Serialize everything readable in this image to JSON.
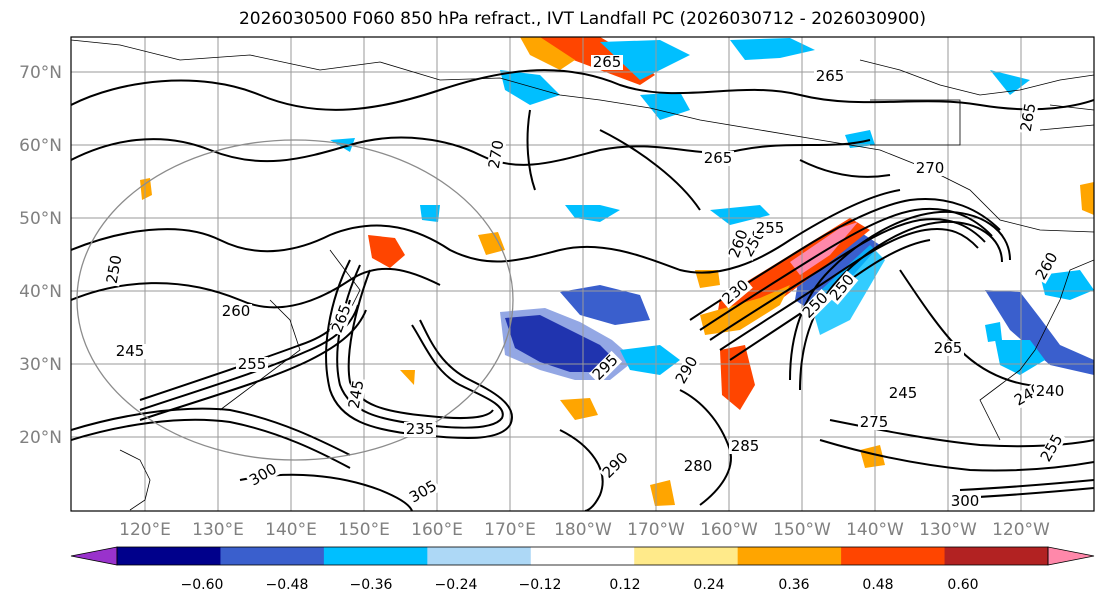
{
  "title": "2026030500 F060 850 hPa refract., IVT Landfall PC (2026030712 - 2026030900)",
  "chart_data": {
    "type": "map",
    "lat_ticks": [
      "70°N",
      "60°N",
      "50°N",
      "40°N",
      "30°N",
      "20°N"
    ],
    "lon_ticks": [
      "120°E",
      "130°E",
      "140°E",
      "150°E",
      "160°E",
      "170°E",
      "180°W",
      "170°W",
      "160°W",
      "150°W",
      "140°W",
      "130°W",
      "120°W"
    ],
    "colorbar": {
      "colors": [
        "#9932cc",
        "#00008b",
        "#3a5fcd",
        "#00bfff",
        "#add8f6",
        "#ffffff",
        "#ffea8a",
        "#ffa500",
        "#ff4500",
        "#b22222",
        "#ff88aa"
      ],
      "tick_labels": [
        "−0.60",
        "−0.48",
        "−0.36",
        "−0.24",
        "−0.12",
        "0.12",
        "0.24",
        "0.36",
        "0.48",
        "0.60"
      ],
      "extend": "both"
    },
    "contour_labels": [
      "265",
      "265",
      "270",
      "265",
      "265",
      "250",
      "260",
      "255",
      "245",
      "250",
      "255",
      "260",
      "230",
      "250",
      "265",
      "260",
      "300",
      "235",
      "265",
      "245",
      "240",
      "275",
      "280",
      "285",
      "290",
      "295",
      "305",
      "300",
      "290",
      "245",
      "255",
      "240",
      "250",
      "270"
    ]
  }
}
